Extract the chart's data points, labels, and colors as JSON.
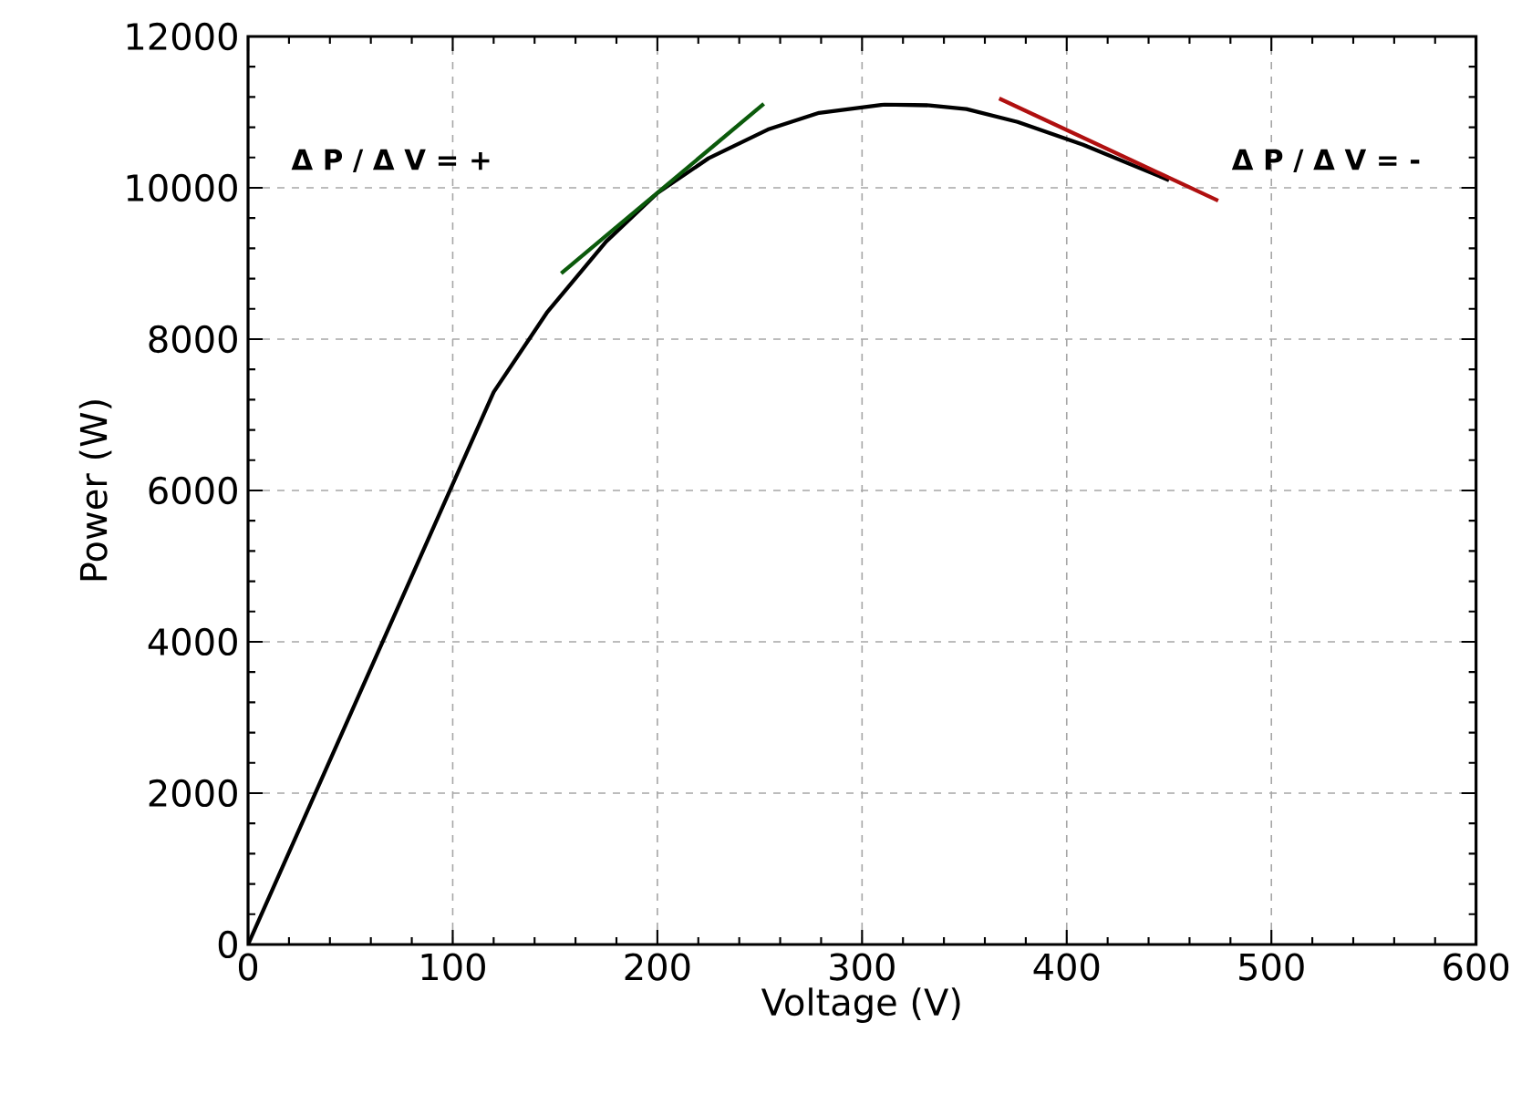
{
  "chart_data": {
    "type": "line",
    "xlabel": "Voltage (V)",
    "ylabel": "Power (W)",
    "xlim": [
      0,
      600
    ],
    "ylim": [
      0,
      12000
    ],
    "xticks": [
      0,
      100,
      200,
      300,
      400,
      500,
      600
    ],
    "yticks": [
      0,
      2000,
      4000,
      6000,
      8000,
      10000,
      12000
    ],
    "grid": true,
    "annotations": [
      "Δ P / Δ V = +",
      "Δ P / Δ V = -"
    ],
    "series": [
      {
        "color": "#000000",
        "x": [
          0,
          120,
          146,
          175,
          200,
          225,
          254,
          279,
          311,
          333,
          351,
          376,
          408,
          450
        ],
        "values": [
          0,
          7300,
          8350,
          9290,
          9930,
          10390,
          10770,
          10990,
          11100,
          11090,
          11040,
          10870,
          10570,
          10100
        ]
      },
      {
        "color": "#0b5a0b",
        "x": [
          153,
          252
        ],
        "values": [
          8870,
          11110
        ]
      },
      {
        "color": "#b01010",
        "x": [
          367,
          474
        ],
        "values": [
          11180,
          9830
        ]
      }
    ]
  }
}
